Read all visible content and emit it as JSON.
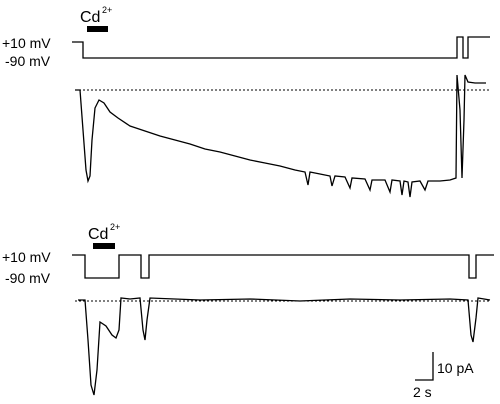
{
  "panels": [
    {
      "label": {
        "text": "Cd",
        "superscript": "2+"
      },
      "voltage_labels": [
        "+10 mV",
        "-90 mV"
      ]
    },
    {
      "label": {
        "text": "Cd",
        "superscript": "2+"
      },
      "voltage_labels": [
        "+10 mV",
        "-90 mV"
      ]
    }
  ],
  "scale_bar": {
    "current": "10 pA",
    "time": "2 s"
  }
}
